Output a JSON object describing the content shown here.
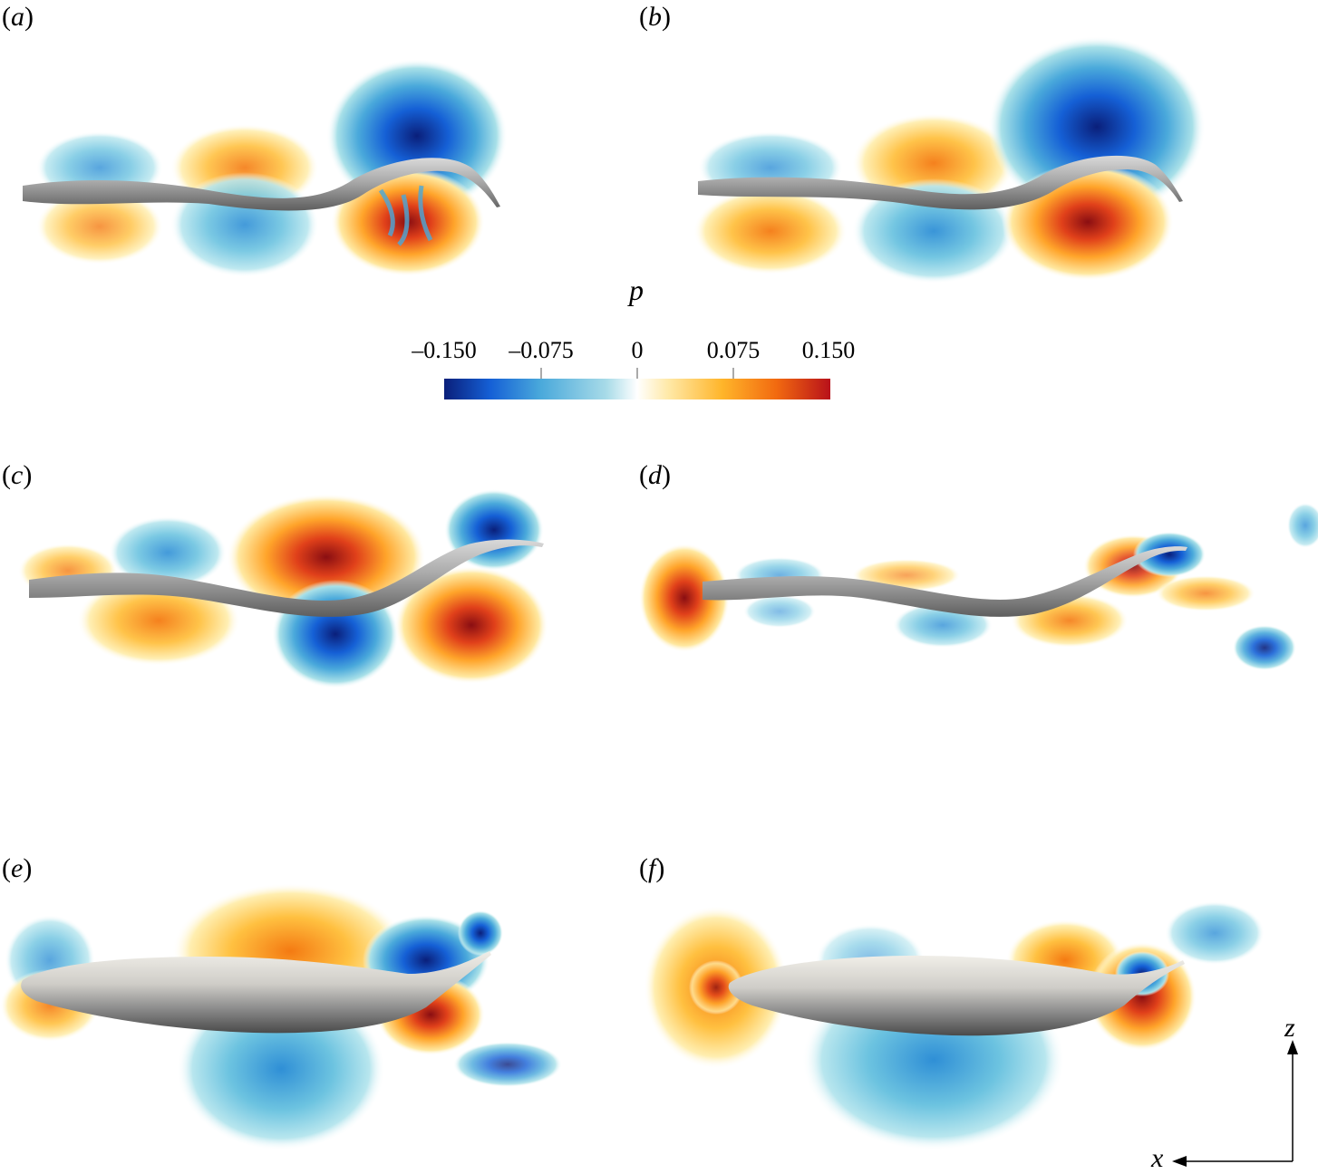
{
  "figure": {
    "panels": [
      {
        "id": "a",
        "label_open": "(",
        "label_letter": "a",
        "label_close": ")"
      },
      {
        "id": "b",
        "label_open": "(",
        "label_letter": "b",
        "label_close": ")"
      },
      {
        "id": "c",
        "label_open": "(",
        "label_letter": "c",
        "label_close": ")"
      },
      {
        "id": "d",
        "label_open": "(",
        "label_letter": "d",
        "label_close": ")"
      },
      {
        "id": "e",
        "label_open": "(",
        "label_letter": "e",
        "label_close": ")"
      },
      {
        "id": "f",
        "label_open": "(",
        "label_letter": "f",
        "label_close": ")"
      }
    ],
    "colorbar": {
      "title": "p",
      "ticks": [
        "–0.150",
        "–0.075",
        "0",
        "0.075",
        "0.150"
      ],
      "colors": [
        "#0a1f7a",
        "#1560d6",
        "#4aa9db",
        "#a8dbe8",
        "#ffffff",
        "#ffe9a8",
        "#ffb52a",
        "#f26a10",
        "#b8111a"
      ]
    },
    "axes": {
      "x_label": "x",
      "z_label": "z"
    }
  }
}
